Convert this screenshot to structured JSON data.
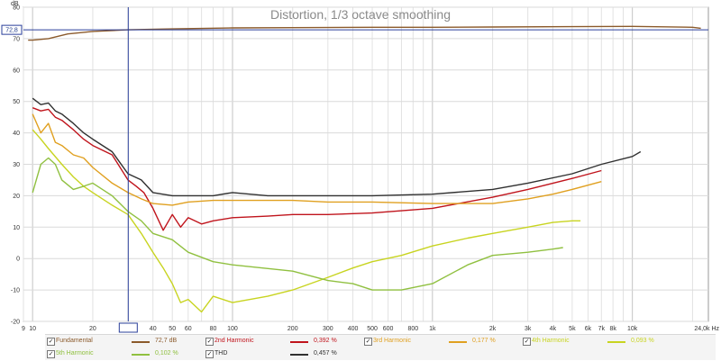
{
  "chart_data": {
    "type": "line",
    "title": "Distortion, 1/3 octave smoothing",
    "ylabel": "dB",
    "xunit": "Hz",
    "x_scale": "log",
    "xlim": [
      9,
      24000
    ],
    "ylim": [
      -20,
      80
    ],
    "yticks": [
      80,
      70,
      60,
      50,
      40,
      30,
      20,
      10,
      0,
      -10,
      -20
    ],
    "xticks": [
      {
        "v": 9,
        "label": "9"
      },
      {
        "v": 10,
        "label": "10"
      },
      {
        "v": 20,
        "label": "20"
      },
      {
        "v": 30,
        "label": "30,1"
      },
      {
        "v": 40,
        "label": "40"
      },
      {
        "v": 50,
        "label": "50"
      },
      {
        "v": 60,
        "label": "60"
      },
      {
        "v": 80,
        "label": "80"
      },
      {
        "v": 100,
        "label": "100"
      },
      {
        "v": 200,
        "label": "200"
      },
      {
        "v": 300,
        "label": "300"
      },
      {
        "v": 400,
        "label": "400"
      },
      {
        "v": 500,
        "label": "500"
      },
      {
        "v": 600,
        "label": "600"
      },
      {
        "v": 800,
        "label": "800"
      },
      {
        "v": 1000,
        "label": "1k"
      },
      {
        "v": 2000,
        "label": "2k"
      },
      {
        "v": 3000,
        "label": "3k"
      },
      {
        "v": 4000,
        "label": "4k"
      },
      {
        "v": 5000,
        "label": "5k"
      },
      {
        "v": 6000,
        "label": "6k"
      },
      {
        "v": 7000,
        "label": "7k"
      },
      {
        "v": 8000,
        "label": "8k"
      },
      {
        "v": 10000,
        "label": "10k"
      },
      {
        "v": 24000,
        "label": "24,0k Hz"
      }
    ],
    "cursor": {
      "x": 30.1,
      "y": 72.8,
      "y_label": "72,8"
    },
    "grid": true,
    "legend_position": "bottom",
    "series": [
      {
        "name": "Fundamental",
        "value": "72,7 dB",
        "color": "#8b5a2b",
        "x": [
          9.5,
          10,
          12,
          15,
          20,
          30,
          50,
          100,
          200,
          500,
          1000,
          2000,
          5000,
          10000,
          20000,
          22000
        ],
        "y": [
          69.5,
          69.5,
          70.0,
          71.5,
          72.3,
          72.8,
          73.1,
          73.4,
          73.5,
          73.6,
          73.6,
          73.7,
          73.8,
          73.9,
          73.6,
          73.3
        ]
      },
      {
        "name": "2nd Harmonic",
        "value": "0,392 %",
        "color": "#c0141c",
        "x": [
          10,
          11,
          12,
          13,
          14,
          16,
          18,
          20,
          25,
          30,
          33,
          36,
          40,
          45,
          50,
          55,
          60,
          70,
          80,
          100,
          150,
          200,
          300,
          500,
          1000,
          2000,
          3000,
          5000,
          7000
        ],
        "y": [
          48,
          47,
          47.5,
          45,
          44,
          41,
          38,
          36,
          33,
          25,
          23,
          21,
          16,
          9,
          14,
          10,
          13,
          11,
          12,
          13,
          13.5,
          14,
          14,
          14.5,
          16,
          19.5,
          22,
          25.5,
          28
        ]
      },
      {
        "name": "3rd Harmonic",
        "value": "0,177 %",
        "color": "#e0a020",
        "x": [
          10,
          11,
          12,
          13,
          14,
          16,
          18,
          20,
          25,
          30,
          35,
          40,
          50,
          60,
          80,
          100,
          200,
          300,
          500,
          1000,
          2000,
          3000,
          4000,
          5000,
          7000
        ],
        "y": [
          46,
          40,
          43,
          37,
          36,
          33,
          32,
          29,
          24,
          21,
          19,
          17.5,
          17,
          18,
          18.5,
          18.5,
          18.5,
          18,
          18,
          17.5,
          17.5,
          19,
          20.5,
          22,
          24.5
        ]
      },
      {
        "name": "4th Harmonic",
        "value": "0,093 %",
        "color": "#c8d420",
        "x": [
          10,
          11,
          12,
          14,
          16,
          18,
          20,
          25,
          30,
          35,
          40,
          45,
          50,
          55,
          60,
          70,
          80,
          100,
          150,
          200,
          300,
          400,
          500,
          700,
          1000,
          1500,
          2000,
          3000,
          4000,
          5000,
          5500
        ],
        "y": [
          41,
          38,
          35,
          30,
          26,
          23,
          21,
          17,
          14,
          8,
          2,
          -3,
          -8,
          -14,
          -13,
          -17,
          -12,
          -14,
          -12,
          -10,
          -6,
          -3,
          -1,
          1,
          4,
          6.5,
          8,
          10,
          11.5,
          12,
          12
        ]
      },
      {
        "name": "5th Harmonic",
        "value": "0,102 %",
        "color": "#90c040",
        "x": [
          10,
          11,
          12,
          13,
          14,
          16,
          18,
          20,
          25,
          30,
          35,
          40,
          50,
          60,
          80,
          100,
          200,
          300,
          400,
          500,
          700,
          1000,
          1500,
          2000,
          3000,
          4000,
          4500
        ],
        "y": [
          21,
          30,
          32,
          30,
          25,
          22,
          23,
          24,
          20,
          15,
          12,
          8,
          6,
          2,
          -1,
          -2,
          -4,
          -7,
          -8,
          -10,
          -10,
          -8,
          -2,
          1,
          2,
          3,
          3.5
        ]
      },
      {
        "name": "THD",
        "value": "0,457 %",
        "color": "#303030",
        "x": [
          10,
          11,
          12,
          13,
          14,
          16,
          18,
          20,
          25,
          30,
          35,
          40,
          50,
          60,
          80,
          100,
          150,
          200,
          300,
          500,
          1000,
          2000,
          3000,
          5000,
          7000,
          10000,
          11000
        ],
        "y": [
          51,
          49,
          49.5,
          47,
          46,
          43,
          40,
          38,
          34,
          27,
          25,
          21,
          20,
          20,
          20,
          21,
          20,
          20,
          20,
          20,
          20.5,
          22,
          24,
          27,
          30,
          32.5,
          34
        ]
      }
    ]
  }
}
